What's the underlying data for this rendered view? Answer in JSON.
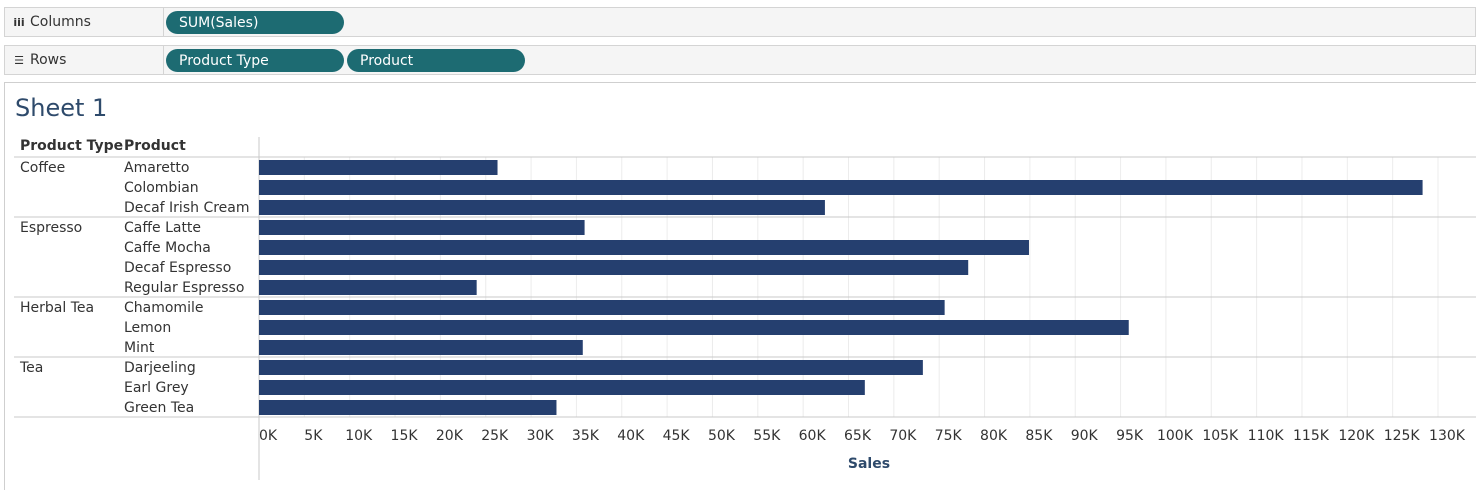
{
  "shelves": {
    "columns": {
      "label": "Columns",
      "pills": [
        "SUM(Sales)"
      ]
    },
    "rows": {
      "label": "Rows",
      "pills": [
        "Product Type",
        "Product"
      ]
    }
  },
  "sheet": {
    "title": "Sheet 1",
    "headers": {
      "product_type": "Product Type",
      "product": "Product"
    }
  },
  "colors": {
    "bar": "#253f6f",
    "pill": "#1d6b72"
  },
  "chart_data": {
    "type": "bar",
    "orientation": "horizontal",
    "groups": [
      {
        "name": "Coffee",
        "products": [
          "Amaretto",
          "Colombian",
          "Decaf Irish Cream"
        ],
        "values": [
          26300,
          128300,
          62400
        ]
      },
      {
        "name": "Espresso",
        "products": [
          "Caffe Latte",
          "Caffe Mocha",
          "Decaf Espresso",
          "Regular Espresso"
        ],
        "values": [
          35900,
          84900,
          78200,
          24000
        ]
      },
      {
        "name": "Herbal Tea",
        "products": [
          "Chamomile",
          "Lemon",
          "Mint"
        ],
        "values": [
          75600,
          95900,
          35700
        ]
      },
      {
        "name": "Tea",
        "products": [
          "Darjeeling",
          "Earl Grey",
          "Green Tea"
        ],
        "values": [
          73200,
          66800,
          32800
        ]
      }
    ],
    "xlabel": "Sales",
    "xlim": [
      0,
      132000
    ],
    "x_ticks": [
      0,
      5000,
      10000,
      15000,
      20000,
      25000,
      30000,
      35000,
      40000,
      45000,
      50000,
      55000,
      60000,
      65000,
      70000,
      75000,
      80000,
      85000,
      90000,
      95000,
      100000,
      105000,
      110000,
      115000,
      120000,
      125000,
      130000
    ],
    "x_tick_labels": [
      "0K",
      "5K",
      "10K",
      "15K",
      "20K",
      "25K",
      "30K",
      "35K",
      "40K",
      "45K",
      "50K",
      "55K",
      "60K",
      "65K",
      "70K",
      "75K",
      "80K",
      "85K",
      "90K",
      "95K",
      "100K",
      "105K",
      "110K",
      "115K",
      "120K",
      "125K",
      "130K"
    ],
    "grid": true
  }
}
